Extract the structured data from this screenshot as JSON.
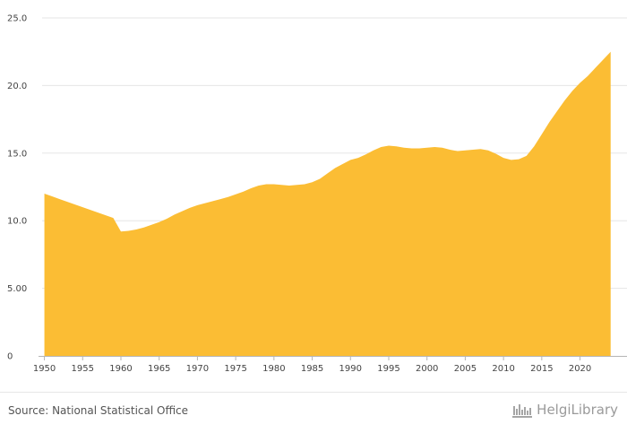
{
  "chart_data": {
    "type": "area",
    "title": "",
    "xlabel": "",
    "ylabel": "",
    "xlim": [
      1949.7,
      2024.5
    ],
    "ylim": [
      0,
      25
    ],
    "y_ticks": [
      {
        "value": 0,
        "label": "0"
      },
      {
        "value": 5,
        "label": "5.00"
      },
      {
        "value": 10,
        "label": "10.0"
      },
      {
        "value": 15,
        "label": "15.0"
      },
      {
        "value": 20,
        "label": "20.0"
      },
      {
        "value": 25,
        "label": "25.0"
      }
    ],
    "x_ticks": [
      {
        "value": 1950,
        "label": "1950"
      },
      {
        "value": 1955,
        "label": "1955"
      },
      {
        "value": 1960,
        "label": "1960"
      },
      {
        "value": 1965,
        "label": "1965"
      },
      {
        "value": 1970,
        "label": "1970"
      },
      {
        "value": 1975,
        "label": "1975"
      },
      {
        "value": 1980,
        "label": "1980"
      },
      {
        "value": 1985,
        "label": "1985"
      },
      {
        "value": 1990,
        "label": "1990"
      },
      {
        "value": 1995,
        "label": "1995"
      },
      {
        "value": 2000,
        "label": "2000"
      },
      {
        "value": 2005,
        "label": "2005"
      },
      {
        "value": 2010,
        "label": "2010"
      },
      {
        "value": 2015,
        "label": "2015"
      },
      {
        "value": 2020,
        "label": "2020"
      }
    ],
    "series": [
      {
        "name": "Value",
        "color": "#fbbd34",
        "x": [
          1950,
          1951,
          1952,
          1953,
          1954,
          1955,
          1956,
          1957,
          1958,
          1959,
          1960,
          1961,
          1962,
          1963,
          1964,
          1965,
          1966,
          1967,
          1968,
          1969,
          1970,
          1971,
          1972,
          1973,
          1974,
          1975,
          1976,
          1977,
          1978,
          1979,
          1980,
          1981,
          1982,
          1983,
          1984,
          1985,
          1986,
          1987,
          1988,
          1989,
          1990,
          1991,
          1992,
          1993,
          1994,
          1995,
          1996,
          1997,
          1998,
          1999,
          2000,
          2001,
          2002,
          2003,
          2004,
          2005,
          2006,
          2007,
          2008,
          2009,
          2010,
          2011,
          2012,
          2013,
          2014,
          2015,
          2016,
          2017,
          2018,
          2019,
          2020,
          2021,
          2022,
          2023,
          2024
        ],
        "values": [
          12.0,
          11.8,
          11.6,
          11.4,
          11.2,
          11.0,
          10.8,
          10.6,
          10.4,
          10.2,
          9.2,
          9.25,
          9.35,
          9.5,
          9.7,
          9.9,
          10.15,
          10.45,
          10.7,
          10.95,
          11.15,
          11.3,
          11.45,
          11.6,
          11.75,
          11.95,
          12.15,
          12.4,
          12.6,
          12.7,
          12.7,
          12.65,
          12.6,
          12.65,
          12.7,
          12.85,
          13.1,
          13.5,
          13.9,
          14.2,
          14.5,
          14.65,
          14.9,
          15.2,
          15.45,
          15.55,
          15.5,
          15.4,
          15.35,
          15.35,
          15.4,
          15.45,
          15.4,
          15.25,
          15.15,
          15.2,
          15.25,
          15.3,
          15.2,
          14.95,
          14.65,
          14.5,
          14.55,
          14.8,
          15.5,
          16.4,
          17.3,
          18.1,
          18.9,
          19.6,
          20.2,
          20.7,
          21.3,
          21.9,
          22.5
        ]
      }
    ],
    "grid": true,
    "legend": "none"
  },
  "footer": {
    "source": "Source: National Statistical Office",
    "brand": "HelgiLibrary"
  },
  "colors": {
    "area": "#fbbd34",
    "grid": "#e6e6e6",
    "axis": "#b5b5b5",
    "text": "#444444"
  }
}
